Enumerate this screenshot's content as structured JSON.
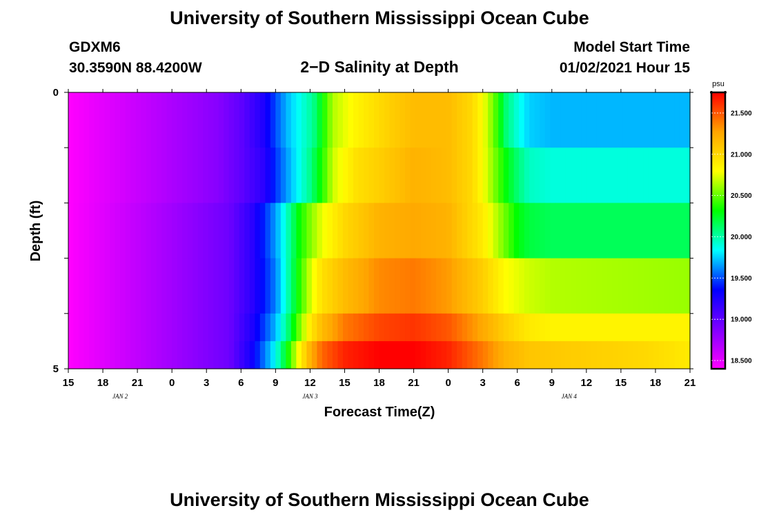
{
  "header": {
    "title": "University of Southern Mississippi Ocean Cube",
    "station_id": "GDXM6",
    "station_coords": "30.3590N 88.4200W",
    "subtitle": "2−D Salinity at Depth",
    "model_start_label": "Model Start Time",
    "model_start_value": "01/02/2021 Hour 15"
  },
  "footer": {
    "title": "University of Southern Mississippi Ocean Cube"
  },
  "chart_data": {
    "type": "heatmap",
    "title": "2−D Salinity at Depth",
    "xlabel": "Forecast Time(Z)",
    "ylabel": "Depth (ft)",
    "x_tick_labels": [
      "15",
      "18",
      "21",
      "0",
      "3",
      "6",
      "9",
      "12",
      "15",
      "18",
      "21",
      "0",
      "3",
      "6",
      "9",
      "12",
      "15",
      "18",
      "21"
    ],
    "date_labels": [
      {
        "label": "JAN 2",
        "at_tick": 1.5
      },
      {
        "label": "JAN 3",
        "at_tick": 7
      },
      {
        "label": "JAN 4",
        "at_tick": 14.5
      }
    ],
    "y_tick_labels": [
      "0",
      "5"
    ],
    "ylim": [
      0,
      5
    ],
    "forecast_hours": [
      0,
      54
    ],
    "depth_bands_ft": [
      0,
      1,
      2,
      3,
      4,
      5
    ],
    "colorbar": {
      "unit": "psu",
      "range": [
        18.4,
        21.75
      ],
      "ticks": [
        "18.500",
        "19.000",
        "19.500",
        "20.000",
        "20.500",
        "21.000",
        "21.500"
      ],
      "colors": [
        "#ff00ff",
        "#8000ff",
        "#0000ff",
        "#00ffff",
        "#00ff00",
        "#ffff00",
        "#ffa500",
        "#ff0000"
      ]
    },
    "salinity_profiles": [
      {
        "depth_ft": 0.5,
        "hours": [
          0,
          13,
          15,
          17,
          18,
          19,
          20,
          21,
          21.5,
          22,
          23,
          25,
          28,
          30,
          33,
          35,
          36,
          37,
          37.5,
          38,
          39,
          40,
          42,
          54
        ],
        "values": [
          18.4,
          18.85,
          19.0,
          19.25,
          19.5,
          19.7,
          19.85,
          20.0,
          20.1,
          20.3,
          20.65,
          20.85,
          21.05,
          21.15,
          21.15,
          21.0,
          20.8,
          20.5,
          20.3,
          20.1,
          19.9,
          19.75,
          19.7,
          19.7
        ]
      },
      {
        "depth_ft": 1.5,
        "hours": [
          0,
          13,
          15,
          17,
          18,
          19,
          20,
          21,
          22,
          23,
          25,
          28,
          30,
          33,
          35,
          36,
          37,
          38,
          39,
          40,
          42,
          54
        ],
        "values": [
          18.4,
          18.85,
          19.0,
          19.2,
          19.45,
          19.65,
          19.85,
          20.05,
          20.35,
          20.7,
          20.95,
          21.1,
          21.2,
          21.15,
          21.0,
          20.8,
          20.55,
          20.3,
          20.1,
          19.95,
          19.9,
          19.9
        ]
      },
      {
        "depth_ft": 2.5,
        "hours": [
          0,
          14,
          16,
          18,
          19,
          20,
          21,
          22,
          24,
          27,
          30,
          33,
          36,
          37,
          38,
          39,
          40,
          42,
          54
        ],
        "values": [
          18.4,
          18.95,
          19.2,
          19.65,
          19.95,
          20.3,
          20.55,
          20.75,
          21.0,
          21.2,
          21.25,
          21.2,
          20.9,
          20.7,
          20.5,
          20.3,
          20.2,
          20.15,
          20.15
        ]
      },
      {
        "depth_ft": 3.5,
        "hours": [
          0,
          14,
          16,
          18,
          19,
          20,
          21,
          22,
          24,
          27,
          30,
          33,
          36,
          38,
          40,
          42,
          54
        ],
        "values": [
          18.4,
          18.95,
          19.2,
          19.6,
          19.95,
          20.35,
          20.7,
          20.95,
          21.15,
          21.35,
          21.4,
          21.3,
          21.05,
          20.8,
          20.7,
          20.65,
          20.6
        ]
      },
      {
        "depth_ft": 4.5,
        "hours": [
          0,
          14,
          16,
          18,
          19,
          20,
          21,
          22,
          24,
          27,
          30,
          33,
          36,
          38,
          40,
          42,
          54
        ],
        "values": [
          18.4,
          18.95,
          19.25,
          19.7,
          20.05,
          20.5,
          20.9,
          21.15,
          21.4,
          21.55,
          21.6,
          21.5,
          21.25,
          21.05,
          20.9,
          20.85,
          20.85
        ]
      },
      {
        "depth_ft": 4.95,
        "hours": [
          0,
          14,
          16,
          18,
          19,
          20,
          21,
          22,
          24,
          27,
          30,
          33,
          36,
          38,
          40,
          45,
          50,
          54
        ],
        "values": [
          18.4,
          18.95,
          19.3,
          19.85,
          20.3,
          20.8,
          21.2,
          21.45,
          21.65,
          21.75,
          21.75,
          21.65,
          21.4,
          21.2,
          21.1,
          21.05,
          21.0,
          20.9
        ]
      }
    ]
  }
}
